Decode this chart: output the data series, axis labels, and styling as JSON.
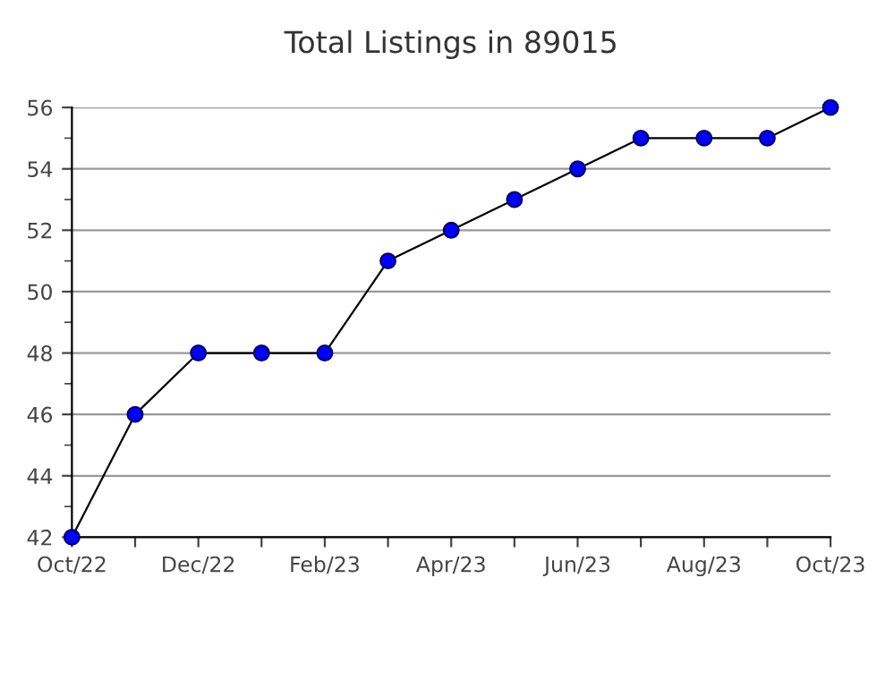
{
  "chart_data": {
    "type": "line",
    "title": "Total Listings in 89015",
    "categories": [
      "Oct/22",
      null,
      "Dec/22",
      null,
      "Feb/23",
      null,
      "Apr/23",
      null,
      "Jun/23",
      null,
      "Aug/23",
      null,
      "Oct/23"
    ],
    "series": [
      {
        "color": "#0000ff",
        "values": [
          42,
          46,
          48,
          48,
          48,
          51,
          52,
          53,
          54,
          55,
          55,
          55,
          56
        ]
      }
    ],
    "ylim": [
      42,
      56
    ],
    "yticks": [
      42,
      44,
      46,
      48,
      50,
      52,
      54,
      56
    ],
    "grid": "y",
    "marker": "circle",
    "line_style": "solid",
    "legend": false
  }
}
